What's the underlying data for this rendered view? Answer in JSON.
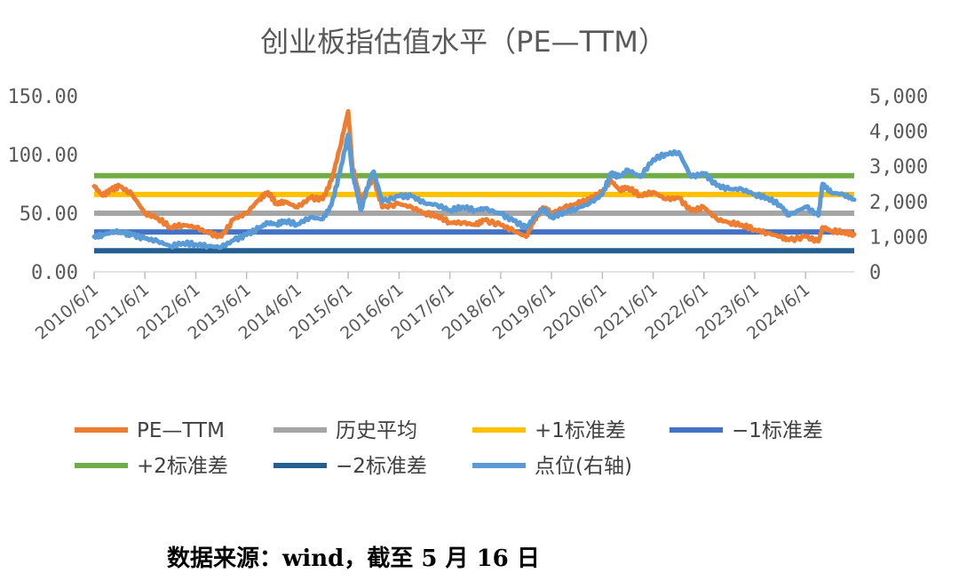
{
  "chart_data": {
    "type": "line",
    "title": "创业板指估值水平（PE—TTM）",
    "x_ticks": [
      "2010/6/1",
      "2011/6/1",
      "2012/6/1",
      "2013/6/1",
      "2014/6/1",
      "2015/6/1",
      "2016/6/1",
      "2017/6/1",
      "2018/6/1",
      "2019/6/1",
      "2020/6/1",
      "2021/6/1",
      "2022/6/1",
      "2023/6/1",
      "2024/6/1"
    ],
    "x_range": [
      "2010/6/1",
      "2025/5/16"
    ],
    "y_left": {
      "range": [
        0,
        150
      ],
      "ticks": [
        "0.00",
        "50.00",
        "100.00",
        "150.00"
      ]
    },
    "y_right": {
      "range": [
        0,
        5000
      ],
      "ticks": [
        "0",
        "1,000",
        "2,000",
        "3,000",
        "4,000",
        "5,000"
      ]
    },
    "reference_lines": [
      {
        "name": "历史平均",
        "value": 50,
        "color": "#a5a5a5"
      },
      {
        "name": "+1标准差",
        "value": 66,
        "color": "#ffc000"
      },
      {
        "name": "−1标准差",
        "value": 34,
        "color": "#4472c4"
      },
      {
        "name": "+2标准差",
        "value": 82,
        "color": "#70ad47"
      },
      {
        "name": "−2标准差",
        "value": 18,
        "color": "#255e91"
      }
    ],
    "series": [
      {
        "name": "PE—TTM",
        "axis": "left",
        "color": "#ed7d31",
        "points": [
          [
            "2010/6/1",
            73
          ],
          [
            "2010/8/1",
            65
          ],
          [
            "2010/10/1",
            70
          ],
          [
            "2010/12/1",
            73
          ],
          [
            "2011/3/1",
            66
          ],
          [
            "2011/6/1",
            50
          ],
          [
            "2011/9/1",
            46
          ],
          [
            "2011/12/1",
            38
          ],
          [
            "2012/3/1",
            40
          ],
          [
            "2012/6/1",
            38
          ],
          [
            "2012/9/1",
            33
          ],
          [
            "2012/12/1",
            30
          ],
          [
            "2013/3/1",
            45
          ],
          [
            "2013/6/1",
            50
          ],
          [
            "2013/9/1",
            62
          ],
          [
            "2013/11/1",
            68
          ],
          [
            "2014/1/1",
            58
          ],
          [
            "2014/3/1",
            60
          ],
          [
            "2014/6/1",
            55
          ],
          [
            "2014/9/1",
            63
          ],
          [
            "2014/12/1",
            62
          ],
          [
            "2015/2/1",
            78
          ],
          [
            "2015/4/1",
            105
          ],
          [
            "2015/6/1",
            137
          ],
          [
            "2015/7/1",
            90
          ],
          [
            "2015/8/1",
            75
          ],
          [
            "2015/9/1",
            60
          ],
          [
            "2015/11/1",
            75
          ],
          [
            "2015/12/1",
            80
          ],
          [
            "2016/2/1",
            55
          ],
          [
            "2016/6/1",
            58
          ],
          [
            "2016/9/1",
            55
          ],
          [
            "2016/12/1",
            50
          ],
          [
            "2017/3/1",
            48
          ],
          [
            "2017/6/1",
            42
          ],
          [
            "2017/9/1",
            42
          ],
          [
            "2017/12/1",
            40
          ],
          [
            "2018/2/1",
            44
          ],
          [
            "2018/6/1",
            40
          ],
          [
            "2018/9/1",
            35
          ],
          [
            "2018/12/1",
            30
          ],
          [
            "2019/2/1",
            45
          ],
          [
            "2019/4/1",
            55
          ],
          [
            "2019/6/1",
            50
          ],
          [
            "2019/9/1",
            55
          ],
          [
            "2019/12/1",
            58
          ],
          [
            "2020/3/1",
            62
          ],
          [
            "2020/6/1",
            68
          ],
          [
            "2020/8/1",
            78
          ],
          [
            "2020/10/1",
            70
          ],
          [
            "2020/12/1",
            72
          ],
          [
            "2021/3/1",
            65
          ],
          [
            "2021/6/1",
            68
          ],
          [
            "2021/9/1",
            62
          ],
          [
            "2021/12/1",
            63
          ],
          [
            "2022/3/1",
            52
          ],
          [
            "2022/6/1",
            55
          ],
          [
            "2022/9/1",
            45
          ],
          [
            "2022/12/1",
            42
          ],
          [
            "2023/3/1",
            40
          ],
          [
            "2023/6/1",
            36
          ],
          [
            "2023/9/1",
            33
          ],
          [
            "2023/12/1",
            30
          ],
          [
            "2024/2/1",
            27
          ],
          [
            "2024/6/1",
            30
          ],
          [
            "2024/9/1",
            26
          ],
          [
            "2024/10/1",
            38
          ],
          [
            "2024/12/1",
            35
          ],
          [
            "2025/3/1",
            34
          ],
          [
            "2025/5/16",
            32
          ]
        ]
      },
      {
        "name": "点位(右轴)",
        "axis": "right",
        "color": "#5b9bd5",
        "points": [
          [
            "2010/6/1",
            1000
          ],
          [
            "2010/8/1",
            1050
          ],
          [
            "2010/11/1",
            1150
          ],
          [
            "2011/1/1",
            1100
          ],
          [
            "2011/3/1",
            1050
          ],
          [
            "2011/6/1",
            950
          ],
          [
            "2011/9/1",
            870
          ],
          [
            "2011/12/1",
            730
          ],
          [
            "2012/3/1",
            820
          ],
          [
            "2012/6/1",
            780
          ],
          [
            "2012/9/1",
            730
          ],
          [
            "2012/12/1",
            700
          ],
          [
            "2013/3/1",
            900
          ],
          [
            "2013/6/1",
            1050
          ],
          [
            "2013/9/1",
            1250
          ],
          [
            "2013/11/1",
            1400
          ],
          [
            "2014/1/1",
            1350
          ],
          [
            "2014/3/1",
            1450
          ],
          [
            "2014/6/1",
            1350
          ],
          [
            "2014/9/1",
            1550
          ],
          [
            "2014/12/1",
            1500
          ],
          [
            "2015/2/1",
            1900
          ],
          [
            "2015/4/1",
            2800
          ],
          [
            "2015/6/1",
            3900
          ],
          [
            "2015/7/1",
            2800
          ],
          [
            "2015/8/1",
            2300
          ],
          [
            "2015/9/1",
            1750
          ],
          [
            "2015/11/1",
            2600
          ],
          [
            "2015/12/1",
            2850
          ],
          [
            "2016/2/1",
            2000
          ],
          [
            "2016/6/1",
            2150
          ],
          [
            "2016/9/1",
            2150
          ],
          [
            "2016/12/1",
            1950
          ],
          [
            "2017/3/1",
            1900
          ],
          [
            "2017/6/1",
            1750
          ],
          [
            "2017/9/1",
            1850
          ],
          [
            "2017/12/1",
            1750
          ],
          [
            "2018/2/1",
            1800
          ],
          [
            "2018/6/1",
            1650
          ],
          [
            "2018/9/1",
            1450
          ],
          [
            "2018/12/1",
            1250
          ],
          [
            "2019/2/1",
            1550
          ],
          [
            "2019/4/1",
            1800
          ],
          [
            "2019/6/1",
            1550
          ],
          [
            "2019/9/1",
            1700
          ],
          [
            "2019/12/1",
            1800
          ],
          [
            "2020/3/1",
            1950
          ],
          [
            "2020/6/1",
            2200
          ],
          [
            "2020/8/1",
            2800
          ],
          [
            "2020/10/1",
            2700
          ],
          [
            "2020/12/1",
            2900
          ],
          [
            "2021/3/1",
            2700
          ],
          [
            "2021/6/1",
            3200
          ],
          [
            "2021/9/1",
            3350
          ],
          [
            "2021/12/1",
            3400
          ],
          [
            "2022/3/1",
            2700
          ],
          [
            "2022/6/1",
            2800
          ],
          [
            "2022/9/1",
            2450
          ],
          [
            "2022/12/1",
            2350
          ],
          [
            "2023/3/1",
            2350
          ],
          [
            "2023/6/1",
            2200
          ],
          [
            "2023/9/1",
            2100
          ],
          [
            "2023/12/1",
            1900
          ],
          [
            "2024/2/1",
            1600
          ],
          [
            "2024/6/1",
            1850
          ],
          [
            "2024/9/1",
            1600
          ],
          [
            "2024/10/1",
            2500
          ],
          [
            "2024/12/1",
            2250
          ],
          [
            "2025/3/1",
            2200
          ],
          [
            "2025/5/16",
            2050
          ]
        ]
      }
    ],
    "legend": {
      "placement": "bottom",
      "items": [
        {
          "label": "PE—TTM",
          "color": "#ed7d31"
        },
        {
          "label": "历史平均",
          "color": "#a5a5a5"
        },
        {
          "label": "+1标准差",
          "color": "#ffc000"
        },
        {
          "label": "−1标准差",
          "color": "#4472c4"
        },
        {
          "label": "+2标准差",
          "color": "#70ad47"
        },
        {
          "label": "−2标准差",
          "color": "#255e91"
        },
        {
          "label": "点位(右轴)",
          "color": "#5b9bd5"
        }
      ]
    },
    "grid": false
  },
  "source_note": "数据来源：wind，截至 5 月 16 日"
}
